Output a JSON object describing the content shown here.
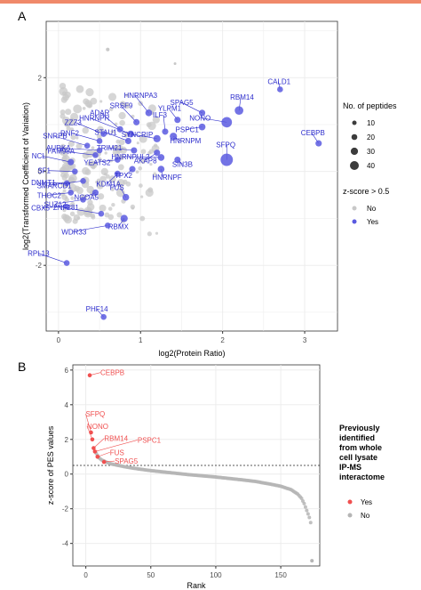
{
  "panels": {
    "a_letter": "A",
    "b_letter": "B"
  },
  "colors": {
    "yes": "#5a5ae0",
    "no": "#c8c8c8",
    "label": "#2d2dcc",
    "b_yes": "#f05050",
    "b_no": "#b5b5b5",
    "accent_rule": "#f0896a"
  },
  "legend_a": {
    "size_title": "No. of peptides",
    "size_labels": [
      "10",
      "20",
      "30",
      "40"
    ],
    "color_title": "z-score > 0.5",
    "color_labels": [
      "No",
      "Yes"
    ]
  },
  "legend_b": {
    "title_lines": [
      "Previously",
      "identified",
      "from whole",
      "cell lysate",
      "IP-MS",
      "interactome"
    ],
    "color_labels": [
      "Yes",
      "No"
    ]
  },
  "chart_data": [
    {
      "type": "scatter",
      "title": "",
      "xlabel": "log2(Protein Ratio)",
      "ylabel": "log2(Transformed Coefficient of Variation)",
      "xlim": [
        -0.15,
        3.4
      ],
      "ylim": [
        -3.4,
        3.2
      ],
      "xticks": [
        "0",
        "1",
        "2",
        "3"
      ],
      "yticks": [
        "-2",
        "0",
        "2"
      ],
      "grid": true,
      "labeled_points": [
        {
          "label": "CALD1",
          "x": 2.7,
          "y": 1.75,
          "size": 10
        },
        {
          "label": "CEBPB",
          "x": 3.17,
          "y": 0.6,
          "size": 12
        },
        {
          "label": "SPAG5",
          "x": 1.75,
          "y": 1.25,
          "size": 12
        },
        {
          "label": "RBM14",
          "x": 2.2,
          "y": 1.3,
          "size": 22
        },
        {
          "label": "NONO",
          "x": 2.05,
          "y": 1.05,
          "size": 30
        },
        {
          "label": "PSPC1",
          "x": 1.75,
          "y": 0.95,
          "size": 14
        },
        {
          "label": "HNRNPA3",
          "x": 1.1,
          "y": 1.25,
          "size": 14
        },
        {
          "label": "YLPM1",
          "x": 1.45,
          "y": 1.1,
          "size": 12
        },
        {
          "label": "SRSF9",
          "x": 0.95,
          "y": 1.05,
          "size": 12
        },
        {
          "label": "ILF3",
          "x": 1.3,
          "y": 0.85,
          "size": 12
        },
        {
          "label": "HNRNPR",
          "x": 0.88,
          "y": 0.8,
          "size": 14
        },
        {
          "label": "ADAR",
          "x": 0.75,
          "y": 0.9,
          "size": 12
        },
        {
          "label": "SYNCRIP",
          "x": 1.2,
          "y": 0.7,
          "size": 16
        },
        {
          "label": "HNRNPM",
          "x": 1.4,
          "y": 0.75,
          "size": 16
        },
        {
          "label": "STAU1",
          "x": 0.85,
          "y": 0.65,
          "size": 12
        },
        {
          "label": "ZZZ3",
          "x": 0.55,
          "y": 0.8,
          "size": 10
        },
        {
          "label": "RNF2",
          "x": 0.5,
          "y": 0.65,
          "size": 10
        },
        {
          "label": "TRIM21",
          "x": 0.92,
          "y": 0.45,
          "size": 12
        },
        {
          "label": "AKAP8",
          "x": 1.2,
          "y": 0.4,
          "size": 12
        },
        {
          "label": "SFPQ",
          "x": 2.05,
          "y": 0.25,
          "size": 38
        },
        {
          "label": "AURKA",
          "x": 0.5,
          "y": 0.45,
          "size": 10
        },
        {
          "label": "YEATS2",
          "x": 0.72,
          "y": 0.25,
          "size": 10
        },
        {
          "label": "HNRNPUL2",
          "x": 1.25,
          "y": 0.3,
          "size": 14
        },
        {
          "label": "SIN3B",
          "x": 1.45,
          "y": 0.25,
          "size": 12
        },
        {
          "label": "HNRNPF",
          "x": 1.25,
          "y": 0.05,
          "size": 14
        },
        {
          "label": "SNRPB",
          "x": 0.35,
          "y": 0.55,
          "size": 10
        },
        {
          "label": "FAM98A",
          "x": 0.45,
          "y": 0.35,
          "size": 10
        },
        {
          "label": "NCL",
          "x": 0.15,
          "y": 0.2,
          "size": 12
        },
        {
          "label": "SF1",
          "x": 0.2,
          "y": 0.0,
          "size": 10
        },
        {
          "label": "KDM1A",
          "x": 0.72,
          "y": -0.05,
          "size": 12
        },
        {
          "label": "TPX2",
          "x": 0.9,
          "y": 0.05,
          "size": 12
        },
        {
          "label": "DNMT1",
          "x": 0.1,
          "y": -0.25,
          "size": 10
        },
        {
          "label": "SMARCD1",
          "x": 0.3,
          "y": -0.2,
          "size": 10
        },
        {
          "label": "THOC2",
          "x": 0.15,
          "y": -0.45,
          "size": 10
        },
        {
          "label": "NCOA5",
          "x": 0.45,
          "y": -0.45,
          "size": 12
        },
        {
          "label": "SUZ12",
          "x": 0.3,
          "y": -0.6,
          "size": 10
        },
        {
          "label": "FUS",
          "x": 0.82,
          "y": -0.55,
          "size": 14
        },
        {
          "label": "CBX5",
          "x": 0.1,
          "y": -0.75,
          "size": 10
        },
        {
          "label": "ZNF281",
          "x": 0.52,
          "y": -0.9,
          "size": 10
        },
        {
          "label": "RBMX",
          "x": 0.8,
          "y": -1.0,
          "size": 16
        },
        {
          "label": "WDR33",
          "x": 0.6,
          "y": -1.15,
          "size": 10
        },
        {
          "label": "RPL13",
          "x": 0.1,
          "y": -1.95,
          "size": 10
        },
        {
          "label": "PHF14",
          "x": 0.55,
          "y": -3.1,
          "size": 10
        }
      ]
    },
    {
      "type": "scatter",
      "title": "",
      "xlabel": "Rank",
      "ylabel": "z-score of PES values",
      "xlim": [
        -10,
        180
      ],
      "ylim": [
        -5.3,
        6.3
      ],
      "xticks": [
        "0",
        "50",
        "100",
        "150"
      ],
      "yticks": [
        "-4",
        "-2",
        "0",
        "2",
        "4",
        "6"
      ],
      "threshold": 0.5,
      "grid": true,
      "labeled_points": [
        {
          "label": "CEBPB",
          "x": 3,
          "y": 5.7
        },
        {
          "label": "SFPQ",
          "x": 4,
          "y": 2.4
        },
        {
          "label": "NONO",
          "x": 5,
          "y": 2.0
        },
        {
          "label": "RBM14",
          "x": 6,
          "y": 1.5
        },
        {
          "label": "PSPC1",
          "x": 7,
          "y": 1.3
        },
        {
          "label": "FUS",
          "x": 9,
          "y": 1.0
        },
        {
          "label": "SPAG5",
          "x": 14,
          "y": 0.7
        }
      ],
      "curve_points": [
        [
          8,
          1.2
        ],
        [
          10,
          0.95
        ],
        [
          12,
          0.82
        ],
        [
          16,
          0.68
        ],
        [
          20,
          0.58
        ],
        [
          25,
          0.5
        ],
        [
          30,
          0.42
        ],
        [
          40,
          0.3
        ],
        [
          50,
          0.2
        ],
        [
          60,
          0.12
        ],
        [
          70,
          0.04
        ],
        [
          80,
          -0.04
        ],
        [
          90,
          -0.1
        ],
        [
          100,
          -0.17
        ],
        [
          110,
          -0.25
        ],
        [
          120,
          -0.33
        ],
        [
          130,
          -0.42
        ],
        [
          140,
          -0.55
        ],
        [
          150,
          -0.7
        ],
        [
          158,
          -0.9
        ],
        [
          163,
          -1.15
        ],
        [
          166,
          -1.4
        ],
        [
          168,
          -1.7
        ],
        [
          170,
          -2.1
        ],
        [
          172,
          -2.5
        ],
        [
          173,
          -2.8
        ],
        [
          174,
          -5.0
        ]
      ]
    }
  ]
}
